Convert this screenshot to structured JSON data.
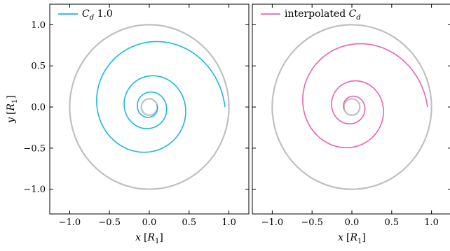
{
  "chart_data": [
    {
      "type": "line",
      "panel": "left",
      "xlabel": "x [R1]",
      "ylabel": "y [R1]",
      "xlim": [
        -1.25,
        1.25
      ],
      "ylim": [
        -1.3,
        1.25
      ],
      "xticks": [
        -1.0,
        -0.5,
        0.0,
        0.5,
        1.0
      ],
      "yticks": [
        -1.0,
        -0.5,
        0.0,
        0.5,
        1.0
      ],
      "xtick_labels": [
        "−1.0",
        "−0.5",
        "0.0",
        "0.5",
        "1.0"
      ],
      "ytick_labels": [
        "−1.0",
        "−0.5",
        "0.0",
        "0.5",
        "1.0"
      ],
      "legend": {
        "position": "top-left",
        "label_main": "C",
        "label_sub": "d",
        "label_suffix": " 1.0"
      },
      "reference_circles": [
        {
          "name": "outer-boundary",
          "radius": 1.0,
          "color": "#c0c0c0"
        },
        {
          "name": "inner-boundary",
          "radius": 0.1,
          "color": "#c0c0c0"
        }
      ],
      "series": [
        {
          "color": "#1ab7e6",
          "spiral": {
            "r_start": 0.95,
            "r_end": 0.1,
            "turns": 3.05,
            "start_angle_deg": 0
          }
        }
      ]
    },
    {
      "type": "line",
      "panel": "right",
      "xlabel": "x [R1]",
      "ylabel": "",
      "xlim": [
        -1.25,
        1.25
      ],
      "ylim": [
        -1.3,
        1.25
      ],
      "xticks": [
        -1.0,
        -0.5,
        0.0,
        0.5,
        1.0
      ],
      "yticks": [
        -1.0,
        -0.5,
        0.0,
        0.5,
        1.0
      ],
      "xtick_labels": [
        "−1.0",
        "−0.5",
        "0.0",
        "0.5",
        "1.0"
      ],
      "legend": {
        "position": "top-left",
        "label_main": "interpolated C",
        "label_sub": "d",
        "label_suffix": ""
      },
      "reference_circles": [
        {
          "name": "outer-boundary",
          "radius": 1.0,
          "color": "#c0c0c0"
        },
        {
          "name": "inner-boundary",
          "radius": 0.1,
          "color": "#c0c0c0"
        }
      ],
      "series": [
        {
          "color": "#f060b0",
          "spiral": {
            "r_start": 0.95,
            "r_end": 0.1,
            "turns": 2.55,
            "start_angle_deg": 0
          }
        }
      ]
    }
  ]
}
